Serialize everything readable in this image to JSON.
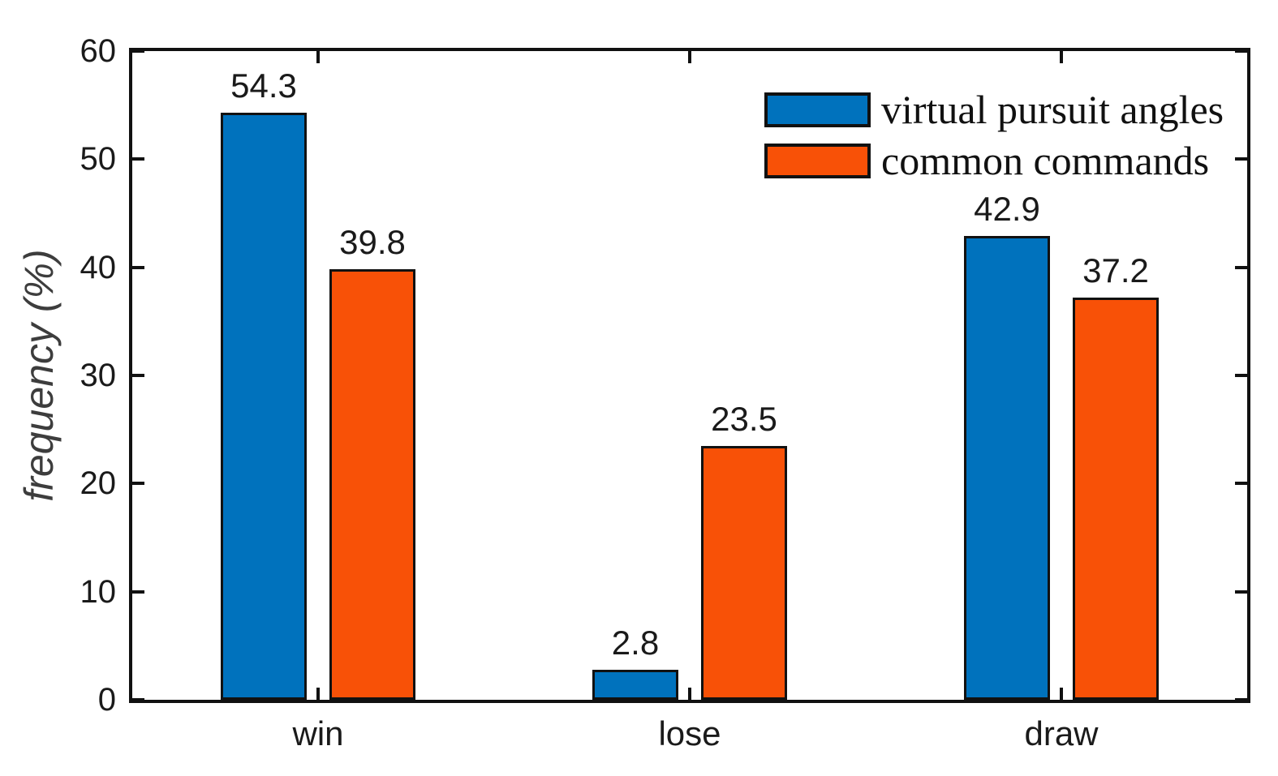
{
  "chart_data": {
    "type": "bar",
    "categories": [
      "win",
      "lose",
      "draw"
    ],
    "series": [
      {
        "name": "virtual pursuit angles",
        "color": "#0072BD",
        "values": [
          54.3,
          2.8,
          42.9
        ]
      },
      {
        "name": "common commands",
        "color": "#F85107",
        "values": [
          39.8,
          23.5,
          37.2
        ]
      }
    ],
    "bar_value_labels": [
      [
        "54.3",
        "2.8",
        "42.9"
      ],
      [
        "39.8",
        "23.5",
        "37.2"
      ]
    ],
    "ylabel": "frequency (%)",
    "xlabel": "",
    "ylim": [
      0,
      60
    ],
    "yticks": [
      0,
      10,
      20,
      30,
      40,
      50,
      60
    ],
    "ytick_labels": [
      "0",
      "10",
      "20",
      "30",
      "40",
      "50",
      "60"
    ],
    "grid": false,
    "legend_position": "top-right",
    "bar_edge_color": "#111111",
    "axis_color": "#111111",
    "tick_direction": "in",
    "box": true
  },
  "colors": {
    "background": "#ffffff",
    "axis": "#111111",
    "tick_text": "#1a1a1a",
    "ylabel_text": "#3d3d3d",
    "series_blue": "#0072BD",
    "series_orange": "#F85107"
  }
}
